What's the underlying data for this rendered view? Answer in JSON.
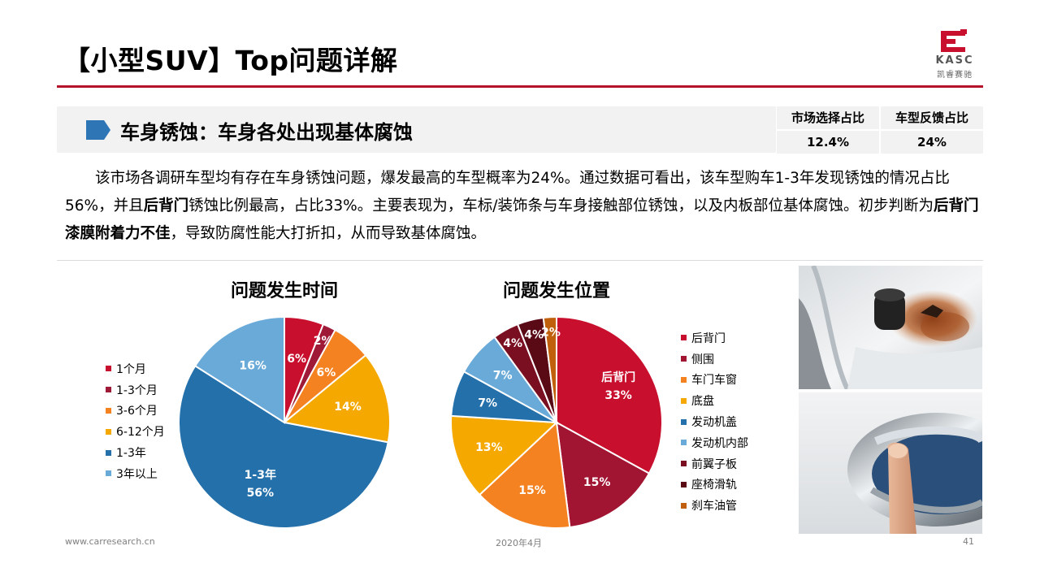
{
  "header": {
    "title": "【小型SUV】Top问题详解",
    "logo": {
      "en": "KASC",
      "cn": "凯睿赛驰",
      "accent": "#c8102e"
    }
  },
  "section": {
    "title": "车身锈蚀：车身各处出现基体腐蚀",
    "marker_color": "#2e75b6",
    "stats": {
      "headers": [
        "市场选择占比",
        "车型反馈占比"
      ],
      "values": [
        "12.4%",
        "24%"
      ]
    }
  },
  "summary": {
    "p1": "该市场各调研车型均有存在车身锈蚀问题，爆发最高的车型概率为24%。通过数据可看出，该车型购车1-3年发现锈蚀的情况占比56%，并且",
    "b1": "后背门",
    "p2": "锈蚀比例最高，占比33%。主要表现为，车标/装饰条与车身接触部位锈蚀，以及内板部位基体腐蚀。初步判断为",
    "b2": "后背门漆膜附着力不佳",
    "p3": "，导致防腐性能大打折扣，从而导致基体腐蚀。"
  },
  "chart_data": [
    {
      "type": "pie",
      "title": "问题发生时间",
      "legend_position": "left",
      "series": [
        {
          "label": "1个月",
          "value": 6,
          "text": "6%",
          "color": "#c8102e"
        },
        {
          "label": "1-3个月",
          "value": 2,
          "text": "2%",
          "color": "#9e1a36"
        },
        {
          "label": "3-6个月",
          "value": 6,
          "text": "6%",
          "color": "#f58220"
        },
        {
          "label": "6-12个月",
          "value": 14,
          "text": "14%",
          "color": "#f5a800"
        },
        {
          "label": "1-3年",
          "value": 56,
          "text": "56%",
          "color": "#2470ab",
          "slice_name": "1-3年"
        },
        {
          "label": "3年以上",
          "value": 16,
          "text": "16%",
          "color": "#6aaad9"
        }
      ]
    },
    {
      "type": "pie",
      "title": "问题发生位置",
      "legend_position": "right",
      "series": [
        {
          "label": "后背门",
          "value": 33,
          "text": "33%",
          "color": "#c8102e",
          "slice_name": "后背门"
        },
        {
          "label": "侧围",
          "value": 15,
          "text": "15%",
          "color": "#a11432"
        },
        {
          "label": "车门车窗",
          "value": 15,
          "text": "15%",
          "color": "#f58220"
        },
        {
          "label": "底盘",
          "value": 13,
          "text": "13%",
          "color": "#f5a800"
        },
        {
          "label": "发动机盖",
          "value": 7,
          "text": "7%",
          "color": "#2470ab"
        },
        {
          "label": "发动机内部",
          "value": 7,
          "text": "7%",
          "color": "#6aaad9"
        },
        {
          "label": "前翼子板",
          "value": 4,
          "text": "4%",
          "color": "#7a0f22"
        },
        {
          "label": "座椅滑轨",
          "value": 4,
          "text": "4%",
          "color": "#5a0a15"
        },
        {
          "label": "刹车油管",
          "value": 2,
          "text": "2%",
          "color": "#c0600c"
        }
      ]
    }
  ],
  "footer": {
    "website": "www.carresearch.cn",
    "date": "2020年4月",
    "page": "41"
  }
}
